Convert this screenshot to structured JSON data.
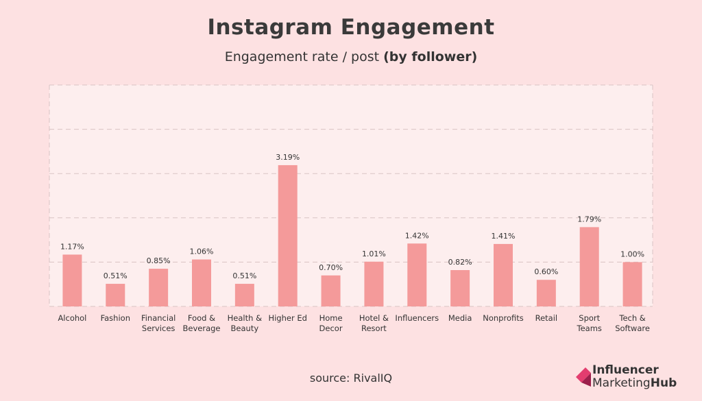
{
  "title": "Instagram Engagement",
  "subtitle": {
    "main": "Engagement rate / post",
    "bold": "(by follower)"
  },
  "source": "source: RivalIQ",
  "logo": {
    "line1": "Influencer",
    "line2a": "Marketing",
    "line2b": "Hub"
  },
  "colors": {
    "bar": "#f49a9a",
    "background": "#fde1e2",
    "plot_bg": "#fdeeee",
    "grid": "#d9c4c4"
  },
  "chart_data": {
    "type": "bar",
    "title": "Instagram Engagement",
    "subtitle": "Engagement rate / post (by follower)",
    "xlabel": "",
    "ylabel": "",
    "ylim": [
      0,
      5
    ],
    "grid": true,
    "categories": [
      [
        "Alcohol"
      ],
      [
        "Fashion"
      ],
      [
        "Financial",
        "Services"
      ],
      [
        "Food &",
        "Beverage"
      ],
      [
        "Health &",
        "Beauty"
      ],
      [
        "Higher Ed"
      ],
      [
        "Home",
        "Decor"
      ],
      [
        "Hotel &",
        "Resort"
      ],
      [
        "Influencers"
      ],
      [
        "Media"
      ],
      [
        "Nonprofits"
      ],
      [
        "Retail"
      ],
      [
        "Sport",
        "Teams"
      ],
      [
        "Tech &",
        "Software"
      ]
    ],
    "values": [
      1.17,
      0.51,
      0.85,
      1.06,
      0.51,
      3.19,
      0.7,
      1.01,
      1.42,
      0.82,
      1.41,
      0.6,
      1.79,
      1.0
    ],
    "labels": [
      "1.17%",
      "0.51%",
      "0.85%",
      "1.06%",
      "0.51%",
      "3.19%",
      "0.70%",
      "1.01%",
      "1.42%",
      "0.82%",
      "1.41%",
      "0.60%",
      "1.79%",
      "1.00%"
    ]
  }
}
